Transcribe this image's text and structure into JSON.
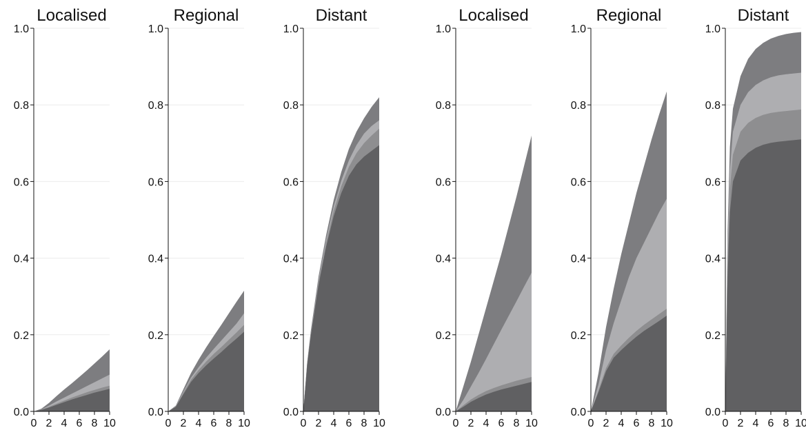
{
  "chart_data": [
    {
      "type": "area",
      "title": "Localised",
      "xlabel": "",
      "ylabel": "",
      "xlim": [
        0,
        10
      ],
      "ylim": [
        0,
        1
      ],
      "grid": true,
      "x": [
        0,
        1,
        2,
        3,
        4,
        5,
        6,
        7,
        8,
        9,
        10
      ],
      "series": [
        {
          "values": [
            0,
            0.004,
            0.01,
            0.017,
            0.024,
            0.031,
            0.037,
            0.043,
            0.049,
            0.054,
            0.059
          ]
        },
        {
          "values": [
            0,
            0.0045,
            0.012,
            0.02,
            0.028,
            0.036,
            0.043,
            0.05,
            0.056,
            0.062,
            0.067
          ]
        },
        {
          "values": [
            0,
            0.005,
            0.015,
            0.026,
            0.036,
            0.046,
            0.056,
            0.066,
            0.076,
            0.086,
            0.096
          ]
        },
        {
          "values": [
            0,
            0.007,
            0.022,
            0.04,
            0.057,
            0.073,
            0.09,
            0.107,
            0.125,
            0.143,
            0.162
          ]
        }
      ]
    },
    {
      "type": "area",
      "title": "Regional",
      "xlabel": "",
      "ylabel": "",
      "xlim": [
        0,
        10
      ],
      "ylim": [
        0,
        1
      ],
      "grid": true,
      "x": [
        0,
        1,
        2,
        3,
        4,
        5,
        6,
        7,
        8,
        9,
        10
      ],
      "series": [
        {
          "values": [
            0,
            0.012,
            0.045,
            0.077,
            0.1,
            0.12,
            0.138,
            0.155,
            0.173,
            0.19,
            0.208
          ]
        },
        {
          "values": [
            0,
            0.013,
            0.049,
            0.083,
            0.108,
            0.13,
            0.15,
            0.168,
            0.187,
            0.206,
            0.226
          ]
        },
        {
          "values": [
            0,
            0.014,
            0.052,
            0.088,
            0.115,
            0.14,
            0.163,
            0.185,
            0.207,
            0.229,
            0.256
          ]
        },
        {
          "values": [
            0,
            0.015,
            0.058,
            0.1,
            0.135,
            0.167,
            0.197,
            0.226,
            0.256,
            0.286,
            0.315
          ]
        }
      ]
    },
    {
      "type": "area",
      "title": "Distant",
      "xlabel": "",
      "ylabel": "",
      "xlim": [
        0,
        10
      ],
      "ylim": [
        0,
        1
      ],
      "grid": true,
      "x": [
        0,
        0.5,
        1,
        2,
        3,
        4,
        5,
        6,
        7,
        8,
        9,
        10
      ],
      "series": [
        {
          "values": [
            0,
            0.12,
            0.2,
            0.33,
            0.43,
            0.51,
            0.57,
            0.615,
            0.645,
            0.665,
            0.68,
            0.695
          ]
        },
        {
          "values": [
            0,
            0.123,
            0.205,
            0.338,
            0.44,
            0.524,
            0.588,
            0.638,
            0.674,
            0.7,
            0.72,
            0.738
          ]
        },
        {
          "values": [
            0,
            0.125,
            0.208,
            0.343,
            0.448,
            0.535,
            0.602,
            0.655,
            0.695,
            0.725,
            0.745,
            0.76
          ]
        },
        {
          "values": [
            0,
            0.128,
            0.213,
            0.352,
            0.46,
            0.552,
            0.625,
            0.685,
            0.73,
            0.765,
            0.795,
            0.82
          ]
        }
      ]
    },
    {
      "type": "area",
      "title": "Localised",
      "xlabel": "",
      "ylabel": "",
      "xlim": [
        0,
        10
      ],
      "ylim": [
        0,
        1
      ],
      "grid": true,
      "x": [
        0,
        1,
        2,
        3,
        4,
        5,
        6,
        7,
        8,
        9,
        10
      ],
      "series": [
        {
          "values": [
            0,
            0.012,
            0.025,
            0.035,
            0.044,
            0.051,
            0.057,
            0.062,
            0.067,
            0.072,
            0.077
          ]
        },
        {
          "values": [
            0,
            0.016,
            0.031,
            0.043,
            0.053,
            0.061,
            0.068,
            0.074,
            0.08,
            0.085,
            0.09
          ]
        },
        {
          "values": [
            0,
            0.03,
            0.065,
            0.1,
            0.137,
            0.175,
            0.213,
            0.25,
            0.287,
            0.325,
            0.362
          ]
        },
        {
          "values": [
            0,
            0.065,
            0.13,
            0.2,
            0.27,
            0.34,
            0.41,
            0.485,
            0.56,
            0.64,
            0.72
          ]
        }
      ]
    },
    {
      "type": "area",
      "title": "Regional",
      "xlabel": "",
      "ylabel": "",
      "xlim": [
        0,
        10
      ],
      "ylim": [
        0,
        1
      ],
      "grid": true,
      "x": [
        0,
        1,
        2,
        3,
        4,
        5,
        6,
        7,
        8,
        9,
        10
      ],
      "series": [
        {
          "values": [
            0,
            0.05,
            0.105,
            0.14,
            0.16,
            0.178,
            0.195,
            0.21,
            0.223,
            0.236,
            0.25
          ]
        },
        {
          "values": [
            0,
            0.055,
            0.113,
            0.15,
            0.172,
            0.192,
            0.21,
            0.226,
            0.24,
            0.254,
            0.268
          ]
        },
        {
          "values": [
            0,
            0.07,
            0.16,
            0.23,
            0.29,
            0.35,
            0.4,
            0.44,
            0.48,
            0.52,
            0.555
          ]
        },
        {
          "values": [
            0,
            0.1,
            0.22,
            0.32,
            0.41,
            0.49,
            0.57,
            0.64,
            0.71,
            0.775,
            0.835
          ]
        }
      ]
    },
    {
      "type": "area",
      "title": "Distant",
      "xlabel": "",
      "ylabel": "",
      "xlim": [
        0,
        10
      ],
      "ylim": [
        0,
        1
      ],
      "grid": true,
      "x": [
        0,
        0.3,
        0.6,
        1,
        2,
        3,
        4,
        5,
        6,
        7,
        8,
        9,
        10
      ],
      "series": [
        {
          "values": [
            0,
            0.35,
            0.52,
            0.6,
            0.655,
            0.675,
            0.688,
            0.696,
            0.701,
            0.704,
            0.706,
            0.708,
            0.71
          ]
        },
        {
          "values": [
            0,
            0.39,
            0.58,
            0.67,
            0.73,
            0.753,
            0.766,
            0.774,
            0.779,
            0.782,
            0.784,
            0.786,
            0.788
          ]
        },
        {
          "values": [
            0,
            0.43,
            0.63,
            0.73,
            0.8,
            0.833,
            0.852,
            0.864,
            0.872,
            0.877,
            0.88,
            0.882,
            0.884
          ]
        },
        {
          "values": [
            0,
            0.47,
            0.69,
            0.79,
            0.875,
            0.92,
            0.946,
            0.962,
            0.973,
            0.98,
            0.985,
            0.988,
            0.99
          ]
        }
      ]
    }
  ],
  "colors": {
    "layer_1": "#606062",
    "layer_2": "#8e8e90",
    "layer_3": "#aeaeb1",
    "layer_4": "#7d7d80",
    "axis": "#111111",
    "grid": "#ececec"
  }
}
